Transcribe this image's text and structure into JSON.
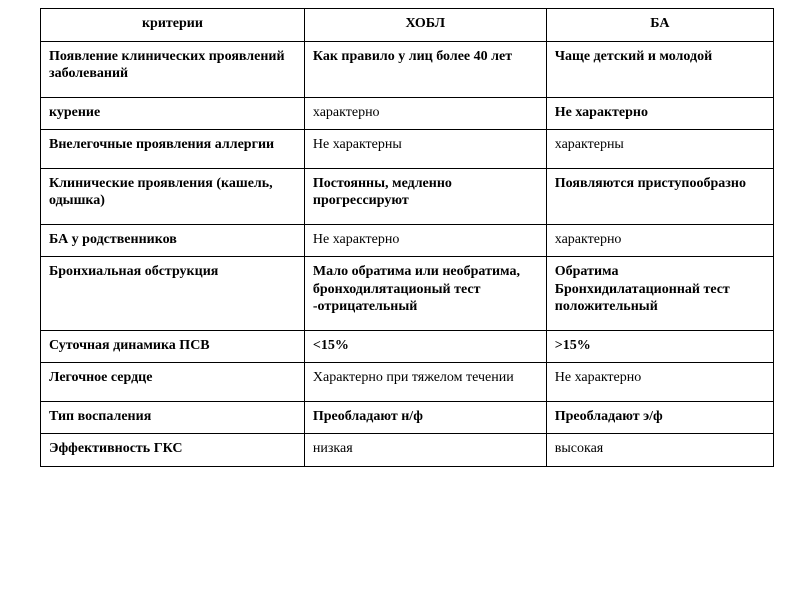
{
  "table": {
    "headers": [
      "критерии",
      "ХОБЛ",
      "БА"
    ],
    "rows": [
      {
        "criteria": "Появление клинических проявлений заболеваний",
        "copd": "Как правило у лиц более 40 лет",
        "asthma": "Чаще детский  и молодой"
      },
      {
        "criteria": "курение",
        "copd": "характерно",
        "asthma": "Не характерно"
      },
      {
        "criteria": "Внелегочные проявления аллергии",
        "copd": "Не характерны",
        "asthma": "характерны"
      },
      {
        "criteria": "Клинические проявления (кашель, одышка)",
        "copd": "Постоянны, медленно прогрессируют",
        "asthma": "Появляются приступообразно"
      },
      {
        "criteria": "БА у родственников",
        "copd": "Не характерно",
        "asthma": "характерно"
      },
      {
        "criteria": "Бронхиальная обструкция",
        "copd": "Мало обратима или необратима, бронходилятационый тест -отрицательный",
        "asthma": "Обратима Бронхидилатационнай тест положительный"
      },
      {
        "criteria": "Суточная динамика ПСВ",
        "copd": "<15%",
        "asthma": ">15%"
      },
      {
        "criteria": "Легочное сердце",
        "copd": "Характерно при тяжелом течении",
        "asthma": "Не характерно"
      },
      {
        "criteria": "Тип воспаления",
        "copd": "Преобладают н/ф",
        "asthma": "Преобладают э/ф"
      },
      {
        "criteria": "Эффективность ГКС",
        "copd": "низкая",
        "asthma": "высокая"
      }
    ],
    "style": {
      "bold_columns": [
        0
      ],
      "bold_rows_all_cells": [
        0,
        3,
        5,
        8
      ],
      "bold_cells": [
        [
          1,
          2
        ],
        [
          6,
          1
        ],
        [
          6,
          2
        ]
      ],
      "tight_rows": [
        1,
        4,
        6,
        8,
        9
      ],
      "border_color": "#000000",
      "background_color": "#ffffff",
      "font_family": "Times New Roman",
      "header_fontsize": 14,
      "cell_fontsize": 14,
      "col_widths_pct": [
        36,
        33,
        31
      ]
    }
  }
}
